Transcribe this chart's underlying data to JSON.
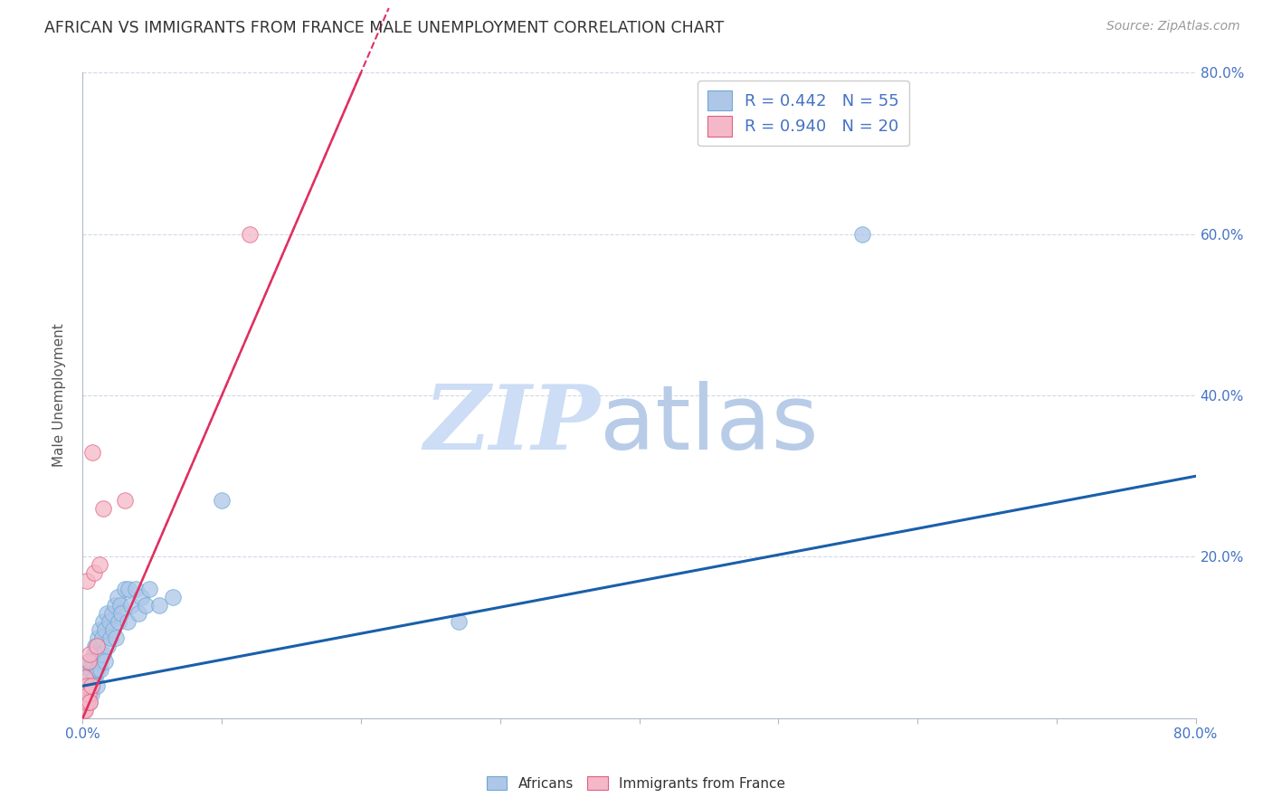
{
  "title": "AFRICAN VS IMMIGRANTS FROM FRANCE MALE UNEMPLOYMENT CORRELATION CHART",
  "source": "Source: ZipAtlas.com",
  "ylabel": "Male Unemployment",
  "xlim": [
    0.0,
    0.8
  ],
  "ylim": [
    0.0,
    0.8
  ],
  "africans_R": 0.442,
  "africans_N": 55,
  "immigrants_R": 0.94,
  "immigrants_N": 20,
  "africans_color": "#aec6e8",
  "africans_edge_color": "#6aaad4",
  "immigrants_color": "#f4b8c8",
  "immigrants_edge_color": "#e06080",
  "trendline_africans_color": "#1a5faa",
  "trendline_immigrants_color": "#e03060",
  "watermark_zip_color": "#c8d8f0",
  "watermark_atlas_color": "#b0c8e8",
  "background_color": "#ffffff",
  "grid_color": "#d0d8e8",
  "africans_x": [
    0.002,
    0.003,
    0.004,
    0.004,
    0.005,
    0.005,
    0.005,
    0.006,
    0.006,
    0.007,
    0.007,
    0.008,
    0.008,
    0.009,
    0.009,
    0.01,
    0.01,
    0.01,
    0.011,
    0.011,
    0.012,
    0.012,
    0.013,
    0.013,
    0.014,
    0.015,
    0.015,
    0.016,
    0.016,
    0.017,
    0.018,
    0.019,
    0.02,
    0.021,
    0.022,
    0.023,
    0.024,
    0.025,
    0.026,
    0.027,
    0.028,
    0.03,
    0.032,
    0.033,
    0.035,
    0.038,
    0.04,
    0.042,
    0.045,
    0.048,
    0.055,
    0.065,
    0.1,
    0.27,
    0.56
  ],
  "africans_y": [
    0.02,
    0.03,
    0.04,
    0.06,
    0.02,
    0.05,
    0.07,
    0.03,
    0.06,
    0.04,
    0.07,
    0.05,
    0.08,
    0.05,
    0.09,
    0.04,
    0.06,
    0.09,
    0.06,
    0.1,
    0.07,
    0.11,
    0.06,
    0.08,
    0.1,
    0.08,
    0.12,
    0.07,
    0.11,
    0.13,
    0.09,
    0.12,
    0.1,
    0.13,
    0.11,
    0.14,
    0.1,
    0.15,
    0.12,
    0.14,
    0.13,
    0.16,
    0.12,
    0.16,
    0.14,
    0.16,
    0.13,
    0.15,
    0.14,
    0.16,
    0.14,
    0.15,
    0.27,
    0.12,
    0.6
  ],
  "immigrants_x": [
    0.001,
    0.001,
    0.002,
    0.002,
    0.002,
    0.003,
    0.003,
    0.003,
    0.004,
    0.004,
    0.005,
    0.005,
    0.006,
    0.007,
    0.008,
    0.01,
    0.012,
    0.015,
    0.03,
    0.12
  ],
  "immigrants_y": [
    0.01,
    0.02,
    0.01,
    0.03,
    0.05,
    0.02,
    0.04,
    0.17,
    0.03,
    0.07,
    0.02,
    0.08,
    0.04,
    0.33,
    0.18,
    0.09,
    0.19,
    0.26,
    0.27,
    0.6
  ],
  "trend_africans_x0": 0.0,
  "trend_africans_x1": 0.8,
  "trend_africans_y0": 0.04,
  "trend_africans_y1": 0.3,
  "trend_immigrants_x0": 0.0,
  "trend_immigrants_x1": 0.2,
  "trend_immigrants_y0": 0.0,
  "trend_immigrants_y1": 0.8
}
